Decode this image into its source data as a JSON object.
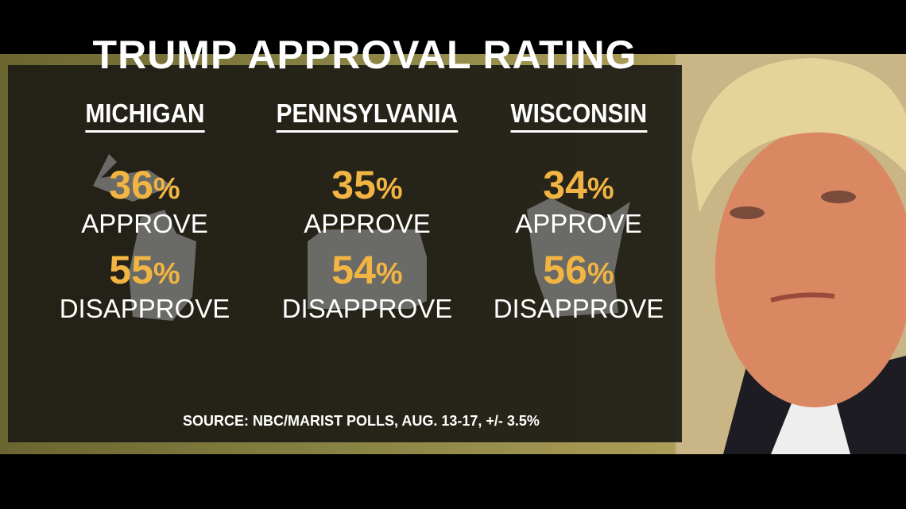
{
  "title": "TRUMP APPROVAL RATING",
  "states": [
    {
      "name": "MICHIGAN",
      "approve_pct": "36",
      "approve_label": "APPROVE",
      "disapprove_pct": "55",
      "disapprove_label": "DISAPPROVE"
    },
    {
      "name": "PENNSYLVANIA",
      "approve_pct": "35",
      "approve_label": "APPROVE",
      "disapprove_pct": "54",
      "disapprove_label": "DISAPPROVE"
    },
    {
      "name": "WISCONSIN",
      "approve_pct": "34",
      "approve_label": "APPROVE",
      "disapprove_pct": "56",
      "disapprove_label": "DISAPPROVE"
    }
  ],
  "percent_symbol": "%",
  "source": "SOURCE: NBC/MARIST POLLS, AUG. 13-17, +/- 3.5%",
  "colors": {
    "percent": "#f2b544",
    "panel": "#1e1c16",
    "text": "#ffffff"
  }
}
